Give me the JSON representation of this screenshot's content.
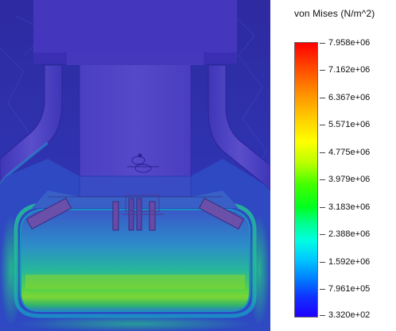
{
  "legend": {
    "title": "von Mises (N/m^2)",
    "values": [
      "7.958e+06",
      "7.162e+06",
      "6.367e+06",
      "5.571e+06",
      "4.775e+06",
      "3.979e+06",
      "3.183e+06",
      "2.388e+06",
      "1.592e+06",
      "7.961e+05",
      "3.320e+02"
    ]
  }
}
